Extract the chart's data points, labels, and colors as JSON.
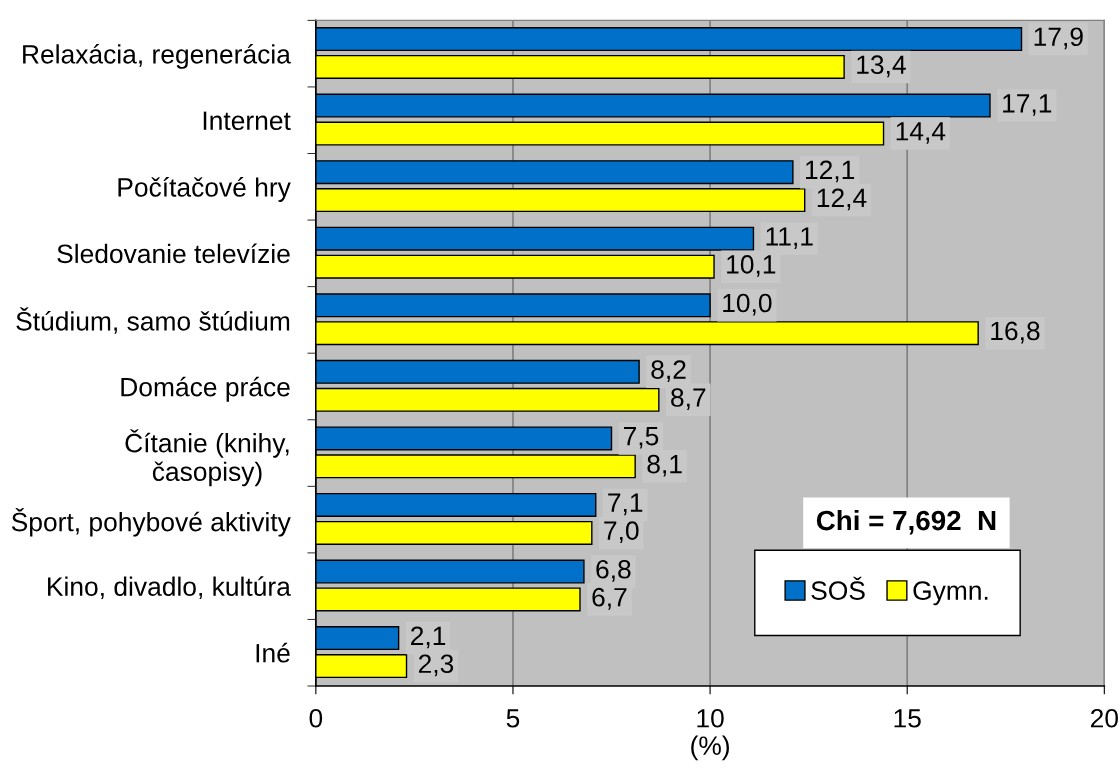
{
  "chart_data": {
    "type": "bar",
    "orientation": "horizontal",
    "xlabel": "(%)",
    "categories": [
      "Relaxácia, regenerácia",
      "Internet",
      "Počítačové hry",
      "Sledovanie televízie",
      "Štúdium, samo štúdium",
      "Domáce práce",
      "Čítanie (knihy,\nčasopisy)",
      "Šport, pohybové aktivity",
      "Kino, divadlo, kultúra",
      "Iné"
    ],
    "series": [
      {
        "name": "SOŠ",
        "color": "#0070c8",
        "values": [
          17.9,
          17.1,
          12.1,
          11.1,
          10.0,
          8.2,
          7.5,
          7.1,
          6.8,
          2.1
        ],
        "value_labels": [
          "17,9",
          "17,1",
          "12,1",
          "11,1",
          "10,0",
          "8,2",
          "7,5",
          "7,1",
          "6,8",
          "2,1"
        ]
      },
      {
        "name": "Gymn.",
        "color": "#ffff00",
        "values": [
          13.4,
          14.4,
          12.4,
          10.1,
          16.8,
          8.7,
          8.1,
          7.0,
          6.7,
          2.3
        ],
        "value_labels": [
          "13,4",
          "14,4",
          "12,4",
          "10,1",
          "16,8",
          "8,7",
          "8,1",
          "7,0",
          "6,7",
          "2,3"
        ]
      }
    ],
    "xlim": [
      0,
      20
    ],
    "xticks": [
      0,
      5,
      10,
      15,
      20
    ],
    "grid": "x",
    "legend": "bottom right",
    "annotations": [
      "Chi = 7,692  N"
    ]
  }
}
